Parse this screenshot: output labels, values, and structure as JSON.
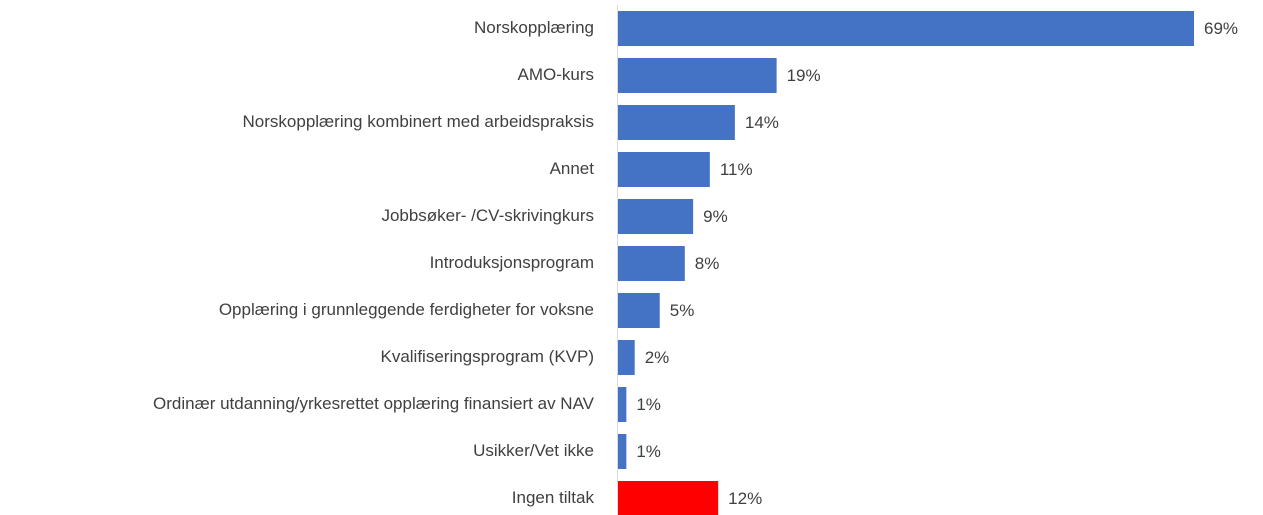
{
  "chart_data": {
    "type": "barh",
    "categories": [
      "Norskopplæring",
      "AMO-kurs",
      "Norskopplæring kombinert med arbeidspraksis",
      "Annet",
      "Jobbsøker- /CV-skrivingkurs",
      "Introduksjonsprogram",
      "Opplæring i grunnleggende ferdigheter for voksne",
      "Kvalifiseringsprogram (KVP)",
      "Ordinær utdanning/yrkesrettet opplæring finansiert av NAV",
      "Usikker/Vet ikke",
      "Ingen tiltak"
    ],
    "values": [
      69,
      19,
      14,
      11,
      9,
      8,
      5,
      2,
      1,
      1,
      12
    ],
    "value_labels": [
      "69%",
      "19%",
      "14%",
      "11%",
      "9%",
      "8%",
      "5%",
      "2%",
      "1%",
      "1%",
      "12%"
    ],
    "colors": [
      "#4472c4",
      "#4472c4",
      "#4472c4",
      "#4472c4",
      "#4472c4",
      "#4472c4",
      "#4472c4",
      "#4472c4",
      "#4472c4",
      "#4472c4",
      "#ff0000"
    ]
  }
}
